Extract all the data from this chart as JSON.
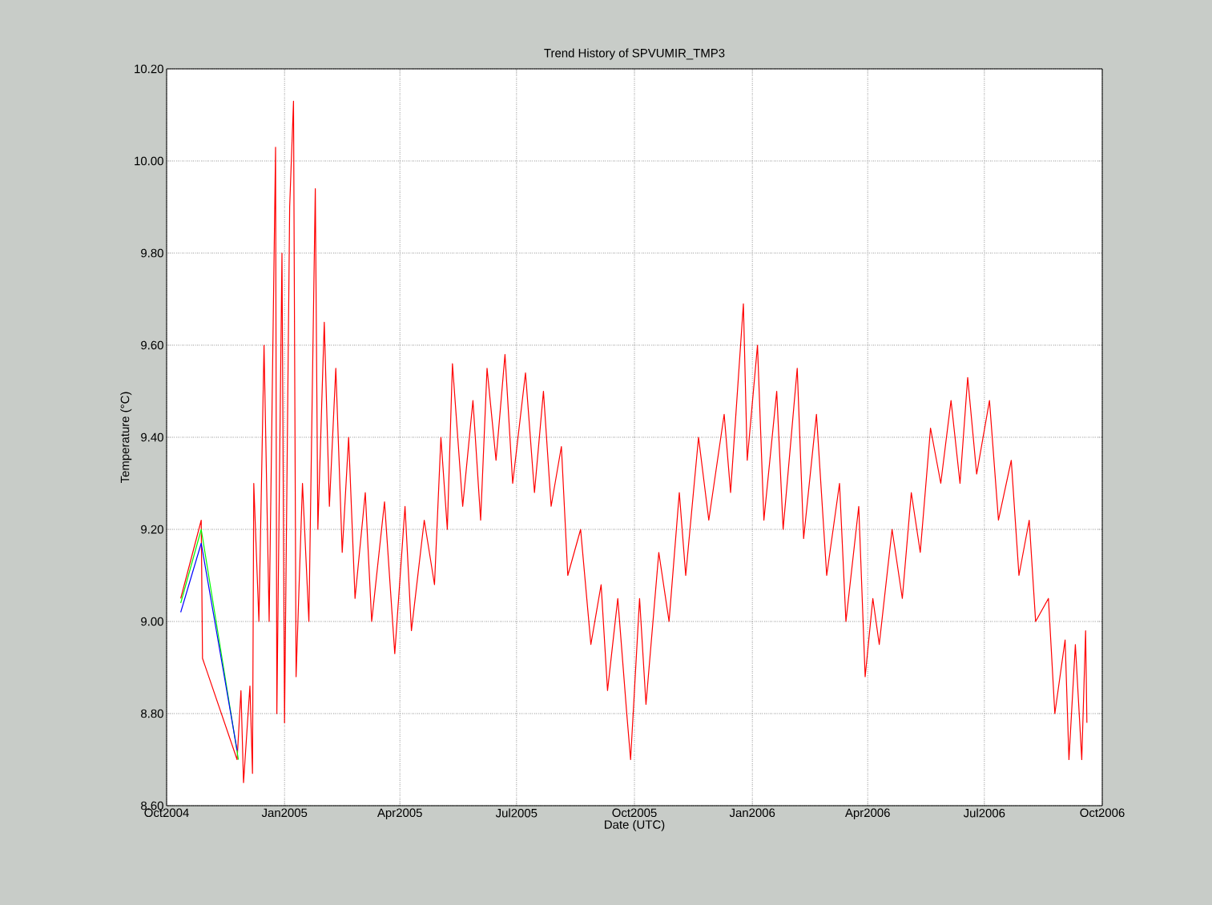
{
  "chart_data": {
    "type": "line",
    "title": "Trend History of SPVUMIR_TMP3",
    "xlabel": "Date (UTC)",
    "ylabel": "Temperature (°C)",
    "xlim": [
      "2004-10-01",
      "2006-10-01"
    ],
    "ylim": [
      8.6,
      10.2
    ],
    "grid": true,
    "xticks": [
      {
        "value": "2004-10-01",
        "label": "Oct2004"
      },
      {
        "value": "2005-01-01",
        "label": "Jan2005"
      },
      {
        "value": "2005-04-01",
        "label": "Apr2005"
      },
      {
        "value": "2005-07-01",
        "label": "Jul2005"
      },
      {
        "value": "2005-10-01",
        "label": "Oct2005"
      },
      {
        "value": "2006-01-01",
        "label": "Jan2006"
      },
      {
        "value": "2006-04-01",
        "label": "Apr2006"
      },
      {
        "value": "2006-07-01",
        "label": "Jul2006"
      },
      {
        "value": "2006-10-01",
        "label": "Oct2006"
      }
    ],
    "yticks": [
      {
        "value": 8.6,
        "label": "8.60"
      },
      {
        "value": 8.8,
        "label": "8.80"
      },
      {
        "value": 9.0,
        "label": "9.00"
      },
      {
        "value": 9.2,
        "label": "9.20"
      },
      {
        "value": 9.4,
        "label": "9.40"
      },
      {
        "value": 9.6,
        "label": "9.60"
      },
      {
        "value": 9.8,
        "label": "9.80"
      },
      {
        "value": 10.0,
        "label": "10.00"
      },
      {
        "value": 10.2,
        "label": "10.20"
      }
    ],
    "series": [
      {
        "color": "#ff0000",
        "x": [
          "2004-10-12",
          "2004-10-28",
          "2004-10-29",
          "2004-11-25",
          "2004-11-28",
          "2004-11-30",
          "2004-12-05",
          "2004-12-07",
          "2004-12-08",
          "2004-12-12",
          "2004-12-16",
          "2004-12-20",
          "2004-12-25",
          "2004-12-26",
          "2004-12-30",
          "2005-01-01",
          "2005-01-05",
          "2005-01-08",
          "2005-01-10",
          "2005-01-15",
          "2005-01-20",
          "2005-01-25",
          "2005-01-27",
          "2005-02-01",
          "2005-02-05",
          "2005-02-10",
          "2005-02-15",
          "2005-02-20",
          "2005-02-25",
          "2005-03-05",
          "2005-03-10",
          "2005-03-20",
          "2005-03-28",
          "2005-04-05",
          "2005-04-10",
          "2005-04-20",
          "2005-04-28",
          "2005-05-03",
          "2005-05-08",
          "2005-05-12",
          "2005-05-20",
          "2005-05-28",
          "2005-06-03",
          "2005-06-08",
          "2005-06-15",
          "2005-06-22",
          "2005-06-28",
          "2005-07-08",
          "2005-07-15",
          "2005-07-22",
          "2005-07-28",
          "2005-08-05",
          "2005-08-10",
          "2005-08-20",
          "2005-08-28",
          "2005-09-05",
          "2005-09-10",
          "2005-09-18",
          "2005-09-25",
          "2005-09-28",
          "2005-10-05",
          "2005-10-10",
          "2005-10-20",
          "2005-10-28",
          "2005-11-05",
          "2005-11-10",
          "2005-11-20",
          "2005-11-28",
          "2005-12-10",
          "2005-12-15",
          "2005-12-25",
          "2005-12-28",
          "2006-01-05",
          "2006-01-10",
          "2006-01-20",
          "2006-01-25",
          "2006-02-05",
          "2006-02-10",
          "2006-02-20",
          "2006-02-28",
          "2006-03-10",
          "2006-03-15",
          "2006-03-25",
          "2006-03-30",
          "2006-04-05",
          "2006-04-10",
          "2006-04-20",
          "2006-04-28",
          "2006-05-05",
          "2006-05-12",
          "2006-05-20",
          "2006-05-28",
          "2006-06-05",
          "2006-06-12",
          "2006-06-18",
          "2006-06-25",
          "2006-07-05",
          "2006-07-12",
          "2006-07-22",
          "2006-07-28",
          "2006-08-05",
          "2006-08-10",
          "2006-08-20",
          "2006-08-25",
          "2006-09-02",
          "2006-09-05",
          "2006-09-10",
          "2006-09-15",
          "2006-09-18",
          "2006-09-19"
        ],
        "values": [
          9.05,
          9.22,
          8.92,
          8.7,
          8.85,
          8.65,
          8.86,
          8.67,
          9.3,
          9.0,
          9.6,
          9.0,
          10.03,
          8.8,
          9.8,
          8.78,
          9.9,
          10.13,
          8.88,
          9.3,
          9.0,
          9.94,
          9.2,
          9.65,
          9.25,
          9.55,
          9.15,
          9.4,
          9.05,
          9.28,
          9.0,
          9.26,
          8.93,
          9.25,
          8.98,
          9.22,
          9.08,
          9.4,
          9.2,
          9.56,
          9.25,
          9.48,
          9.22,
          9.55,
          9.35,
          9.58,
          9.3,
          9.54,
          9.28,
          9.5,
          9.25,
          9.38,
          9.1,
          9.2,
          8.95,
          9.08,
          8.85,
          9.05,
          8.8,
          8.7,
          9.05,
          8.82,
          9.15,
          9.0,
          9.28,
          9.1,
          9.4,
          9.22,
          9.45,
          9.28,
          9.69,
          9.35,
          9.6,
          9.22,
          9.5,
          9.2,
          9.55,
          9.18,
          9.45,
          9.1,
          9.3,
          9.0,
          9.25,
          8.88,
          9.05,
          8.95,
          9.2,
          9.05,
          9.28,
          9.15,
          9.42,
          9.3,
          9.48,
          9.3,
          9.53,
          9.32,
          9.48,
          9.22,
          9.35,
          9.1,
          9.22,
          9.0,
          9.05,
          8.8,
          8.96,
          8.7,
          8.95,
          8.7,
          8.98,
          8.78
        ]
      },
      {
        "color": "#00ff00",
        "x": [
          "2004-10-12",
          "2004-10-28",
          "2004-11-26"
        ],
        "values": [
          9.04,
          9.2,
          8.7
        ]
      },
      {
        "color": "#0000ff",
        "x": [
          "2004-10-12",
          "2004-10-28",
          "2004-11-25"
        ],
        "values": [
          9.02,
          9.17,
          8.72
        ]
      }
    ]
  }
}
